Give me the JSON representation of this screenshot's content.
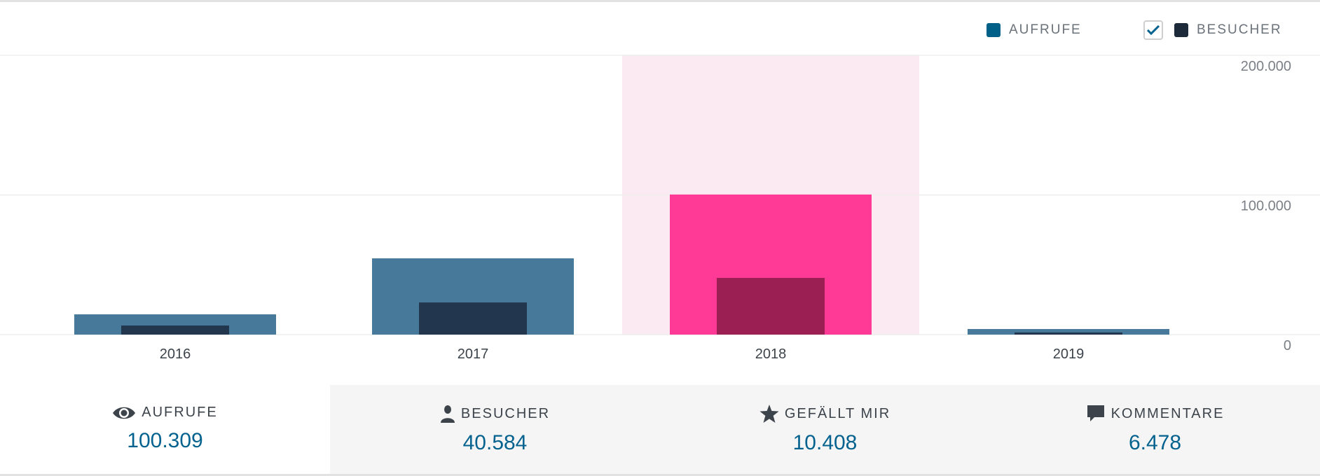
{
  "legend": {
    "views_label": "AUFRUFE",
    "visitors_label": "BESUCHER",
    "visitors_checked": true,
    "views_color": "#006088",
    "visitors_color": "#1d2a3a"
  },
  "chart_data": {
    "type": "bar",
    "categories": [
      "2016",
      "2017",
      "2018",
      "2019"
    ],
    "series": [
      {
        "name": "Aufrufe",
        "values": [
          14500,
          54600,
          100309,
          4000
        ],
        "color": "#47799a",
        "highlight_color": "#ff3a96"
      },
      {
        "name": "Besucher",
        "values": [
          6500,
          23000,
          40584,
          1500
        ],
        "color": "#22364d",
        "highlight_color": "#9b1f52"
      }
    ],
    "selected_category": "2018",
    "highlight_bg": "#fbeaf1",
    "ylim": [
      0,
      200000
    ],
    "yticks": [
      0,
      100000,
      200000
    ],
    "ytick_labels": [
      "0",
      "100.000",
      "200.000"
    ],
    "grid": true,
    "legend_position": "top-right"
  },
  "stats": [
    {
      "icon": "eye-icon",
      "label": "AUFRUFE",
      "value": "100.309",
      "selected": true
    },
    {
      "icon": "person-icon",
      "label": "BESUCHER",
      "value": "40.584",
      "selected": false
    },
    {
      "icon": "star-icon",
      "label": "GEFÄLLT MIR",
      "value": "10.408",
      "selected": false
    },
    {
      "icon": "comment-icon",
      "label": "KOMMENTARE",
      "value": "6.478",
      "selected": false
    }
  ]
}
